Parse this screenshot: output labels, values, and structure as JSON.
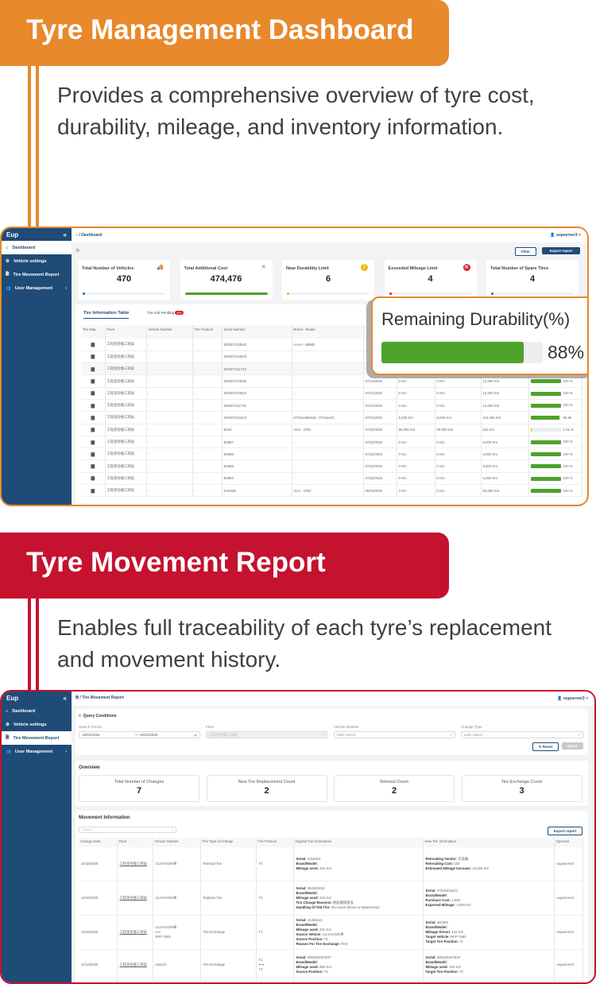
{
  "colors": {
    "orange": "#e8892b",
    "red": "#c4122f",
    "navy": "#1f4b77",
    "green": "#4ea22b"
  },
  "section1": {
    "title": "Tyre Management Dashboard",
    "description": "Provides a comprehensive overview of tyre cost, durability, mileage, and inventory information."
  },
  "section2": {
    "title": "Tyre Movement Report",
    "description": "Enables full traceability of each tyre’s replacement and movement history."
  },
  "app": {
    "logo": "Eup",
    "user": "eupserver3",
    "sidebar": [
      {
        "label": "Dashboard",
        "icon": "home-icon"
      },
      {
        "label": "Vehicle settings",
        "icon": "gears-icon"
      },
      {
        "label": "Tire Movement Report",
        "icon": "document-icon"
      },
      {
        "label": "User Management",
        "icon": "users-icon"
      }
    ]
  },
  "dashboard": {
    "breadcrumb": "/ Dashboard",
    "filter": "Filter",
    "export": "Export report",
    "cards": [
      {
        "label": "Total Number of Vehicles",
        "value": "470",
        "icon": "truck-icon",
        "progress": 3
      },
      {
        "label": "Total Additional Cost",
        "value": "474,476",
        "icon": "tools-icon",
        "progress": 100
      },
      {
        "label": "Near Durability Limit",
        "value": "6",
        "icon": "warning-icon",
        "progress": 3
      },
      {
        "label": "Exceeded Mileage Limit",
        "value": "4",
        "icon": "error-icon",
        "progress": 3
      },
      {
        "label": "Total Number of Spare Tires",
        "value": "4",
        "icon": "tire-icon",
        "progress": 3
      }
    ],
    "tabs": [
      {
        "label": "Tire Information Table"
      },
      {
        "label": "Tire Info Pending",
        "badge": "99+"
      }
    ],
    "columns": [
      "Tire Map",
      "Fleet",
      "Vehicle Number",
      "Tire Position",
      "Serial Number",
      "Brand - Model",
      "",
      "",
      "",
      "",
      ""
    ],
    "rows": [
      {
        "fleet": "工程部金橦三測試",
        "veh": "-",
        "pos": "-",
        "serial": "202507210542",
        "brand": "AAAA - BBBB"
      },
      {
        "fleet": "工程部金橦三測試",
        "veh": "-",
        "pos": "-",
        "serial": "202507210543",
        "brand": "-"
      },
      {
        "fleet": "工程部金橦三測試",
        "veh": "-",
        "pos": "-",
        "serial": "202507211743",
        "brand": "-"
      },
      {
        "fleet": "工程部金橦三測試",
        "veh": "-",
        "pos": "-",
        "serial": "202507210545",
        "brand": "-",
        "date": "07/21/2025",
        "m1": "0 Km",
        "m2": "0 Km",
        "m3": "12,000 Km",
        "dur": 100,
        "durText": "100 %"
      },
      {
        "fleet": "工程部金橦三測試",
        "veh": "-",
        "pos": "-",
        "serial": "202507210544",
        "brand": "-",
        "date": "07/21/2025",
        "m1": "0 Km",
        "m2": "0 Km",
        "m3": "12,000 Km",
        "dur": 100,
        "durText": "100 %"
      },
      {
        "fleet": "工程部金橦三測試",
        "veh": "-",
        "pos": "-",
        "serial": "202507211745",
        "brand": "-",
        "date": "07/21/2025",
        "m1": "0 Km",
        "m2": "0 Km",
        "m3": "12,000 Km",
        "dur": 100,
        "durText": "100 %"
      },
      {
        "fleet": "工程部金橦三測試",
        "veh": "-",
        "pos": "-",
        "serial": "202507210413",
        "brand": "0721testBrand - 0721testT...",
        "date": "07/01/2025",
        "m1": "5,000 Km",
        "m2": "5,000 Km",
        "m3": "118,456 Km",
        "dur": 95.95,
        "durText": "95.95"
      },
      {
        "fleet": "工程部金橦三測試",
        "veh": "-",
        "pos": "-",
        "serial": "B234",
        "brand": "Vins - V001",
        "date": "07/22/2025",
        "m1": "50,000 Km",
        "m2": "50,000 Km",
        "m3": "511 Km",
        "dur": 1.01,
        "durText": "1.01 %"
      },
      {
        "fleet": "工程部金橦三測試",
        "veh": "-",
        "pos": "-",
        "serial": "B4587",
        "brand": "-",
        "date": "07/22/2025",
        "m1": "0 Km",
        "m2": "0 Km",
        "m3": "5,000 Km",
        "dur": 100,
        "durText": "100 %"
      },
      {
        "fleet": "工程部金橦三測試",
        "veh": "-",
        "pos": "-",
        "serial": "B4586",
        "brand": "-",
        "date": "07/22/2025",
        "m1": "0 Km",
        "m2": "0 Km",
        "m3": "5,000 Km",
        "dur": 100,
        "durText": "100 %"
      },
      {
        "fleet": "工程部金橦三測試",
        "veh": "-",
        "pos": "-",
        "serial": "B4585",
        "brand": "-",
        "date": "07/22/2025",
        "m1": "0 Km",
        "m2": "0 Km",
        "m3": "5,000 Km",
        "dur": 100,
        "durText": "100 %"
      },
      {
        "fleet": "工程部金橦三測試",
        "veh": "-",
        "pos": "-",
        "serial": "B4584",
        "brand": "-",
        "date": "07/22/2025",
        "m1": "0 Km",
        "m2": "0 Km",
        "m3": "5,000 Km",
        "dur": 100,
        "durText": "100 %"
      },
      {
        "fleet": "工程部金橦三測試",
        "veh": "-",
        "pos": "-",
        "serial": "KA8425",
        "brand": "Vins - V001",
        "date": "08/04/2025",
        "m1": "0 Km",
        "m2": "0 Km",
        "m3": "50,000 Km",
        "dur": 100,
        "durText": "100 %"
      }
    ],
    "popup": {
      "title": "Remaining Durability(%)",
      "value": 88,
      "text": "88%"
    }
  },
  "report": {
    "breadcrumb": "/ Tire Movement Report",
    "query_title": "Query Conditions",
    "fields": {
      "period_label": "Search Period",
      "start": "10/01/2025",
      "end": "10/21/2025",
      "fleet_label": "Fleet",
      "fleet_value": "工程部金橦三測試",
      "vehicle_label": "Vehicle Number",
      "vehicle_ph": "Multi Select",
      "type_label": "Change Type",
      "type_ph": "Multi Select"
    },
    "reset": "Reset",
    "query": "Query",
    "overview_title": "Overview",
    "overview": [
      {
        "label": "Total Number of Changes",
        "value": "7"
      },
      {
        "label": "New Tire Replacement Count",
        "value": "2"
      },
      {
        "label": "Retread Count",
        "value": "2"
      },
      {
        "label": "Tire Exchange Count",
        "value": "3"
      }
    ],
    "movement_title": "Movement Information",
    "search_ph": "Search",
    "export": "Export report",
    "columns": [
      "Change Date",
      "Fleet",
      "Vehicle Number",
      "The Type of Change",
      "Tire Position",
      "Original Tire Information",
      "New Tire Information",
      "Operator"
    ],
    "rows": [
      {
        "date": "10/15/2025",
        "fleet": "工程部金橦三測試",
        "vehicle": [
          "U1.8-KSON車"
        ],
        "type": "Retread Tire",
        "pos": [
          "T4"
        ],
        "orig": [
          [
            "Serial:",
            "3318414"
          ],
          [
            "Brand/Model:",
            ""
          ],
          [
            "Mileage used:",
            "231 Km"
          ]
        ],
        "new": [
          [
            "Retreading Vendor:",
            "京美輪"
          ],
          [
            "Retreading Cost:",
            "100"
          ],
          [
            "Estimated Mileage Increase:",
            "10,000 Km"
          ]
        ],
        "op": "eupserver3"
      },
      {
        "date": "10/15/2025",
        "fleet": "工程部金橦三測試",
        "vehicle": [
          "U1.8-KSON車"
        ],
        "type": "Replace Tire",
        "pos": [
          "T2"
        ],
        "orig": [
          [
            "Serial:",
            "384384318"
          ],
          [
            "Brand/Model:",
            ""
          ],
          [
            "Mileage used:",
            "231 Km"
          ],
          [
            "Tire Change Reasons:",
            "胎面磨損過低"
          ],
          [
            "Handling Of Old Tire:",
            "No Action (Move to Warehouse)"
          ]
        ],
        "new": [
          [
            "Serial:",
            "27515215421"
          ],
          [
            "Brand/Model:",
            ""
          ],
          [
            "Purchase Cost:",
            "1,000"
          ],
          [
            "Expected Mileage:",
            "1,000 Km"
          ]
        ],
        "op": "eupserver3"
      },
      {
        "date": "10/15/2025",
        "fleet": "工程部金橦三測試",
        "vehicle": [
          "U1.8-KSON車",
          "⟷",
          "RFP-7582"
        ],
        "type": "Tire Exchange",
        "pos": [
          "T1"
        ],
        "orig": [
          [
            "Serial:",
            "41336141"
          ],
          [
            "Brand/Model:",
            ""
          ],
          [
            "Mileage used:",
            "231 Km"
          ],
          [
            "Source Vehicle:",
            "U1.8-KSON車"
          ],
          [
            "Source Position:",
            "T1"
          ],
          [
            "Reason For Tire Exchange:",
            "Test"
          ]
        ],
        "new": [
          [
            "Serial:",
            "381381"
          ],
          [
            "Brand/Model:",
            ""
          ],
          [
            "Mileage Driven:",
            "132 Km"
          ],
          [
            "Target Vehicle:",
            "RFP-7582"
          ],
          [
            "Target Tire Position:",
            "T1"
          ]
        ],
        "op": "eupserver3"
      },
      {
        "date": "10/13/2025",
        "fleet": "工程部金橦三測試",
        "vehicle": [
          "104121"
        ],
        "type": "Tire Exchange",
        "pos": [
          "T1",
          "⟷",
          "T2"
        ],
        "orig": [
          [
            "Serial:",
            "08042025TEST"
          ],
          [
            "Brand/Model:",
            ""
          ],
          [
            "Mileage used:",
            "850 Km"
          ],
          [
            "Source Position:",
            "T1"
          ]
        ],
        "new": [
          [
            "Serial:",
            "08042025TEST"
          ],
          [
            "Brand/Model:",
            ""
          ],
          [
            "Mileage used:",
            "100 Km"
          ],
          [
            "Target Tire Position:",
            "T2"
          ]
        ],
        "op": "eupserver3"
      }
    ]
  }
}
